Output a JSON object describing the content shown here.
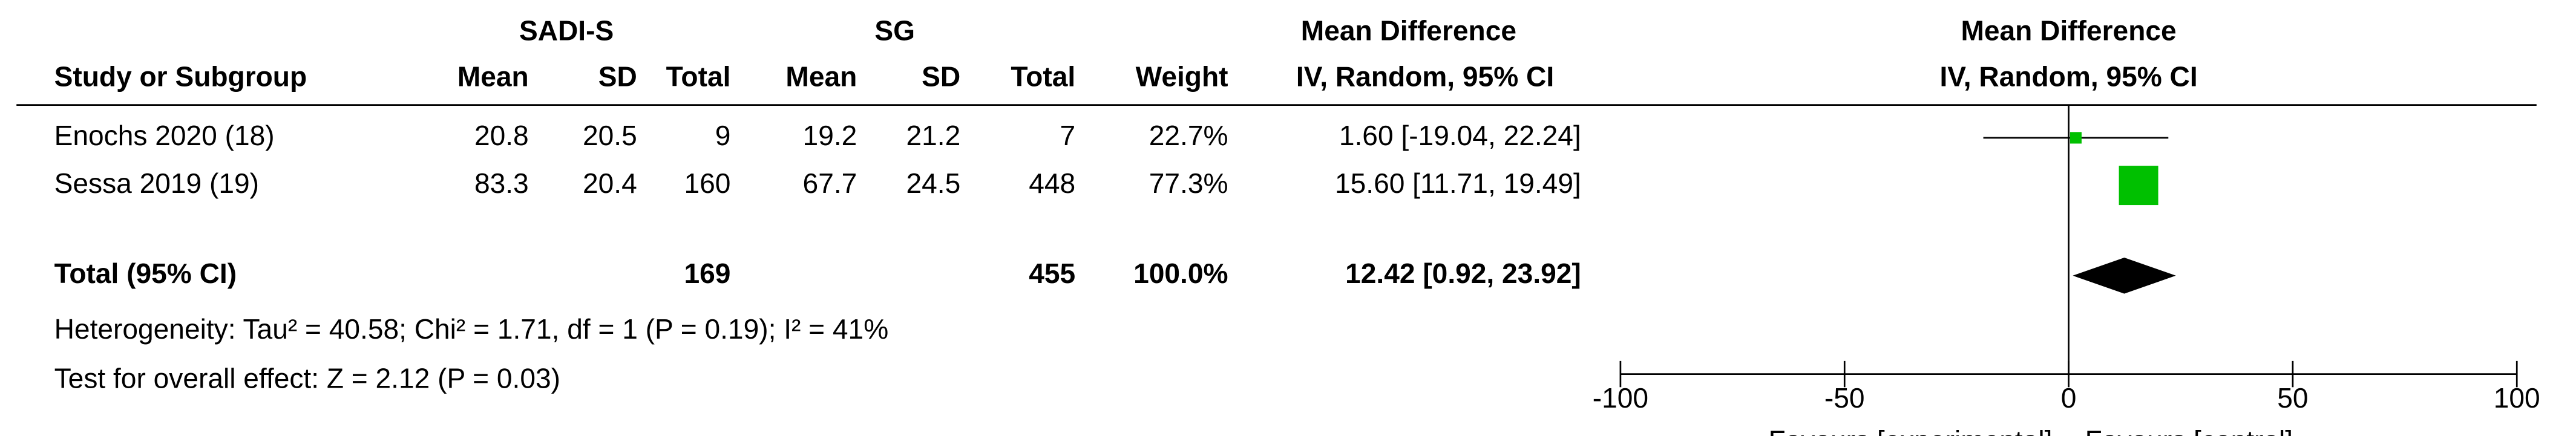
{
  "table": {
    "group_headers": [
      "SADI-S",
      "SG",
      "Mean Difference"
    ],
    "columns": [
      "Study or Subgroup",
      "Mean",
      "SD",
      "Total",
      "Mean",
      "SD",
      "Total",
      "Weight",
      "IV, Random, 95% CI"
    ],
    "rows": [
      [
        "Enochs 2020 (18)",
        "20.8",
        "20.5",
        "9",
        "19.2",
        "21.2",
        "7",
        "22.7%",
        "1.60 [-19.04, 22.24]"
      ],
      [
        "Sessa 2019 (19)",
        "83.3",
        "20.4",
        "160",
        "67.7",
        "24.5",
        "448",
        "77.3%",
        "15.60 [11.71, 19.49]"
      ]
    ],
    "total_row": {
      "label": "Total (95% CI)",
      "total_1": "169",
      "total_2": "455",
      "weight": "100.0%",
      "ci": "12.42 [0.92, 23.92]"
    },
    "heterogeneity": "Heterogeneity: Tau² = 40.58; Chi² = 1.71, df = 1 (P = 0.19); I² = 41%",
    "overall_effect": "Test for overall effect: Z = 2.12 (P = 0.03)"
  },
  "chart_data": {
    "type": "forest",
    "title": "Mean Difference",
    "subtitle": "IV, Random, 95% CI",
    "values": [
      1.6,
      15.6
    ],
    "lower": [
      -19.04,
      11.71
    ],
    "upper": [
      22.24,
      19.49
    ],
    "weights": [
      22.7,
      77.3
    ],
    "total": {
      "value": 12.42,
      "lower": 0.92,
      "upper": 23.92
    },
    "xlim": [
      -100,
      100
    ],
    "xticks": [
      -100,
      -50,
      0,
      50,
      100
    ],
    "x_labels": [
      "Favours [experimental]",
      "Favours [control]"
    ],
    "color": "#00c000",
    "diamond_color": "#000000"
  }
}
